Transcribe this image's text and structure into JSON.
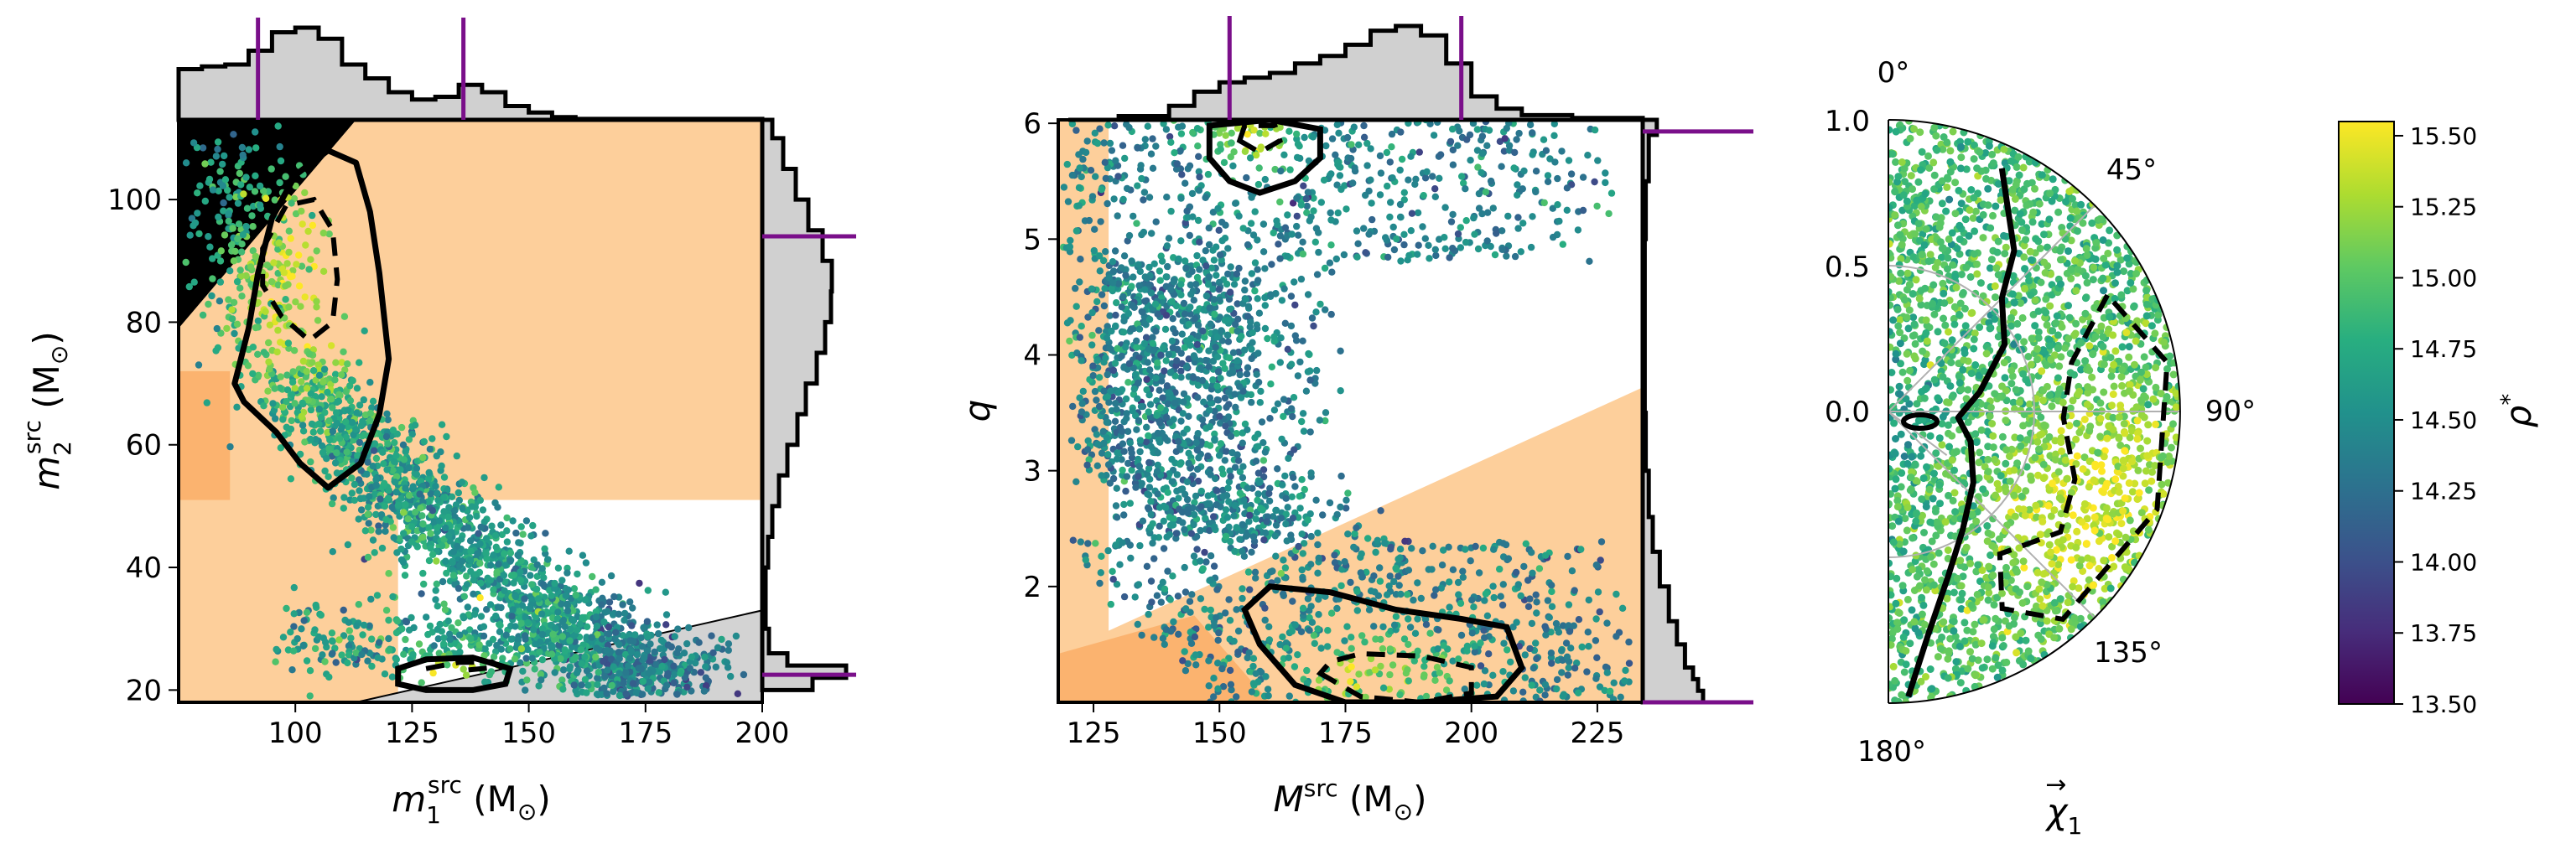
{
  "chart_data": [
    {
      "id": "panel-masses",
      "type": "scatter",
      "xlabel": "m_1^src (M⊙)",
      "ylabel": "m_2^src (M⊙)",
      "xlim": [
        75,
        200
      ],
      "ylim": [
        18,
        113
      ],
      "x_ticks": [
        100,
        125,
        150,
        175,
        200
      ],
      "y_ticks": [
        20,
        40,
        60,
        80,
        100
      ],
      "x_tick_labels": [
        "100",
        "125",
        "150",
        "175",
        "200"
      ],
      "y_tick_labels": [
        "20",
        "40",
        "60",
        "80",
        "100"
      ],
      "color_variable": "ρ*",
      "marginal_markers_x": [
        92,
        136
      ],
      "marginal_markers_y": [
        94,
        22.5
      ],
      "contours": {
        "upper_mode_90": [
          [
            87,
            70
          ],
          [
            90,
            79
          ],
          [
            92,
            88
          ],
          [
            95,
            97
          ],
          [
            100,
            104
          ],
          [
            107,
            108
          ],
          [
            113,
            106
          ],
          [
            116,
            98
          ],
          [
            118,
            88
          ],
          [
            120,
            74
          ],
          [
            118,
            65
          ],
          [
            114,
            57
          ],
          [
            107,
            53
          ],
          [
            101,
            57
          ],
          [
            96,
            62
          ],
          [
            89,
            67
          ]
        ],
        "upper_mode_50": [
          [
            93,
            92
          ],
          [
            98,
            99
          ],
          [
            104,
            100
          ],
          [
            108,
            95
          ],
          [
            109,
            87
          ],
          [
            108,
            80
          ],
          [
            103,
            77
          ],
          [
            97,
            81
          ],
          [
            93,
            86
          ]
        ],
        "lower_mode_90": [
          [
            122,
            21
          ],
          [
            128,
            20
          ],
          [
            138,
            20
          ],
          [
            145,
            21
          ],
          [
            146,
            23.5
          ],
          [
            138,
            25.3
          ],
          [
            128,
            25
          ],
          [
            122,
            23.5
          ]
        ],
        "lower_mode_50": [
          [
            128,
            23.5
          ],
          [
            135,
            24.5
          ],
          [
            142,
            24.6
          ],
          [
            144,
            23.8
          ],
          [
            136,
            23.2
          ]
        ]
      },
      "excluded_regions": {
        "orange_rects": [
          [
            75,
            200,
            51,
            113
          ],
          [
            75,
            122,
            18,
            113
          ]
        ],
        "dark_orange_rect": [
          75,
          86,
          51,
          72
        ],
        "grey_triangle": [
          [
            113,
            18
          ],
          [
            200,
            18
          ],
          [
            200,
            33
          ]
        ],
        "black_triangle": [
          [
            75,
            113
          ],
          [
            113,
            113
          ],
          [
            75,
            79
          ]
        ]
      },
      "marginal_x_hist": [
        [
          75,
          0.55
        ],
        [
          80,
          0.58
        ],
        [
          85,
          0.6
        ],
        [
          90,
          0.75
        ],
        [
          95,
          0.95
        ],
        [
          100,
          1.0
        ],
        [
          105,
          0.88
        ],
        [
          110,
          0.6
        ],
        [
          115,
          0.45
        ],
        [
          120,
          0.3
        ],
        [
          125,
          0.22
        ],
        [
          130,
          0.25
        ],
        [
          135,
          0.38
        ],
        [
          140,
          0.3
        ],
        [
          145,
          0.15
        ],
        [
          150,
          0.08
        ],
        [
          155,
          0.03
        ],
        [
          160,
          0.01
        ],
        [
          200,
          0.0
        ]
      ],
      "marginal_y_hist": [
        [
          20,
          0.6
        ],
        [
          22,
          1.0
        ],
        [
          24,
          0.3
        ],
        [
          26,
          0.08
        ],
        [
          30,
          0.04
        ],
        [
          35,
          0.04
        ],
        [
          40,
          0.07
        ],
        [
          45,
          0.12
        ],
        [
          50,
          0.2
        ],
        [
          55,
          0.3
        ],
        [
          60,
          0.42
        ],
        [
          65,
          0.52
        ],
        [
          70,
          0.65
        ],
        [
          75,
          0.75
        ],
        [
          80,
          0.82
        ],
        [
          85,
          0.83
        ],
        [
          90,
          0.72
        ],
        [
          95,
          0.55
        ],
        [
          100,
          0.4
        ],
        [
          105,
          0.25
        ],
        [
          110,
          0.12
        ],
        [
          113,
          0.05
        ]
      ]
    },
    {
      "id": "panel-total-mass",
      "type": "scatter",
      "xlabel": "M^src (M⊙)",
      "ylabel": "q",
      "xlim": [
        118,
        234
      ],
      "ylim": [
        1.0,
        6.03
      ],
      "x_ticks": [
        125,
        150,
        175,
        200,
        225
      ],
      "y_ticks": [
        2,
        3,
        4,
        5,
        6
      ],
      "x_tick_labels": [
        "125",
        "150",
        "175",
        "200",
        "225"
      ],
      "y_tick_labels": [
        "2",
        "3",
        "4",
        "5",
        "6"
      ],
      "color_variable": "ρ*",
      "marginal_markers_x": [
        152,
        198
      ],
      "marginal_markers_y": [
        5.93,
        1.0
      ],
      "contours": {
        "upper_mode_90": [
          [
            148,
            5.7
          ],
          [
            152,
            5.5
          ],
          [
            158,
            5.4
          ],
          [
            165,
            5.5
          ],
          [
            170,
            5.7
          ],
          [
            170,
            5.95
          ],
          [
            160,
            6.03
          ],
          [
            148,
            5.98
          ]
        ],
        "upper_mode_50": [
          [
            154,
            5.85
          ],
          [
            158,
            5.75
          ],
          [
            162,
            5.85
          ],
          [
            161,
            5.98
          ],
          [
            155,
            5.98
          ]
        ],
        "lower_mode_90": [
          [
            155,
            1.8
          ],
          [
            158,
            1.5
          ],
          [
            165,
            1.15
          ],
          [
            175,
            1.0
          ],
          [
            190,
            1.0
          ],
          [
            205,
            1.05
          ],
          [
            210,
            1.3
          ],
          [
            207,
            1.65
          ],
          [
            198,
            1.72
          ],
          [
            185,
            1.8
          ],
          [
            172,
            1.95
          ],
          [
            160,
            2.0
          ]
        ],
        "lower_mode_50": [
          [
            170,
            1.25
          ],
          [
            178,
            1.05
          ],
          [
            190,
            1.0
          ],
          [
            200,
            1.08
          ],
          [
            200,
            1.3
          ],
          [
            190,
            1.4
          ],
          [
            178,
            1.42
          ],
          [
            172,
            1.35
          ]
        ]
      },
      "excluded_regions": {
        "orange_left": [
          118,
          128
        ],
        "orange_wedge": [
          [
            118,
            1.0
          ],
          [
            118,
            1.42
          ],
          [
            234,
            3.72
          ],
          [
            234,
            1.0
          ]
        ],
        "dark_orange_corner": [
          [
            118,
            1.0
          ],
          [
            118,
            1.42
          ],
          [
            145,
            1.75
          ],
          [
            160,
            1.0
          ]
        ]
      },
      "marginal_x_hist": [
        [
          120,
          0.0
        ],
        [
          130,
          0.04
        ],
        [
          140,
          0.15
        ],
        [
          145,
          0.3
        ],
        [
          150,
          0.4
        ],
        [
          155,
          0.45
        ],
        [
          160,
          0.5
        ],
        [
          165,
          0.6
        ],
        [
          170,
          0.68
        ],
        [
          175,
          0.8
        ],
        [
          180,
          0.95
        ],
        [
          185,
          1.0
        ],
        [
          190,
          0.9
        ],
        [
          195,
          0.6
        ],
        [
          200,
          0.25
        ],
        [
          205,
          0.12
        ],
        [
          210,
          0.05
        ],
        [
          220,
          0.02
        ],
        [
          234,
          0.0
        ]
      ],
      "marginal_y_hist": [
        [
          1.0,
          0.6
        ],
        [
          1.1,
          0.55
        ],
        [
          1.2,
          0.5
        ],
        [
          1.3,
          0.42
        ],
        [
          1.5,
          0.34
        ],
        [
          1.7,
          0.26
        ],
        [
          2.0,
          0.17
        ],
        [
          2.3,
          0.1
        ],
        [
          2.6,
          0.06
        ],
        [
          3.0,
          0.03
        ],
        [
          3.5,
          0.02
        ],
        [
          4.0,
          0.02
        ],
        [
          4.5,
          0.02
        ],
        [
          5.0,
          0.03
        ],
        [
          5.5,
          0.06
        ],
        [
          5.9,
          0.14
        ],
        [
          6.03,
          0.1
        ]
      ]
    },
    {
      "id": "panel-spin-polar",
      "type": "scatter",
      "projection": "polar",
      "axis_label": "χ⃗_1",
      "r_range": [
        0,
        1.0
      ],
      "r_ticks": [
        0.0,
        0.5,
        1.0
      ],
      "r_tick_labels": [
        "0.0",
        "0.5",
        "1.0"
      ],
      "angle_range_deg": [
        0,
        180
      ],
      "angle_labels": [
        "0°",
        "45°",
        "90°",
        "135°",
        "180°"
      ],
      "color_variable": "ρ*"
    }
  ],
  "colorbar": {
    "label": "ρ*",
    "min": 13.5,
    "max": 15.55,
    "colormap": "viridis",
    "ticks": [
      "13.50",
      "13.75",
      "14.00",
      "14.25",
      "14.50",
      "14.75",
      "15.00",
      "15.25",
      "15.50"
    ]
  },
  "colors": {
    "orange_region": "#fdcf9b",
    "dark_orange_region": "#fbb36f",
    "grey_region": "#d3d3d3",
    "marker_purple": "#7a0f8a",
    "histogram_fill": "#d0d0d0"
  }
}
